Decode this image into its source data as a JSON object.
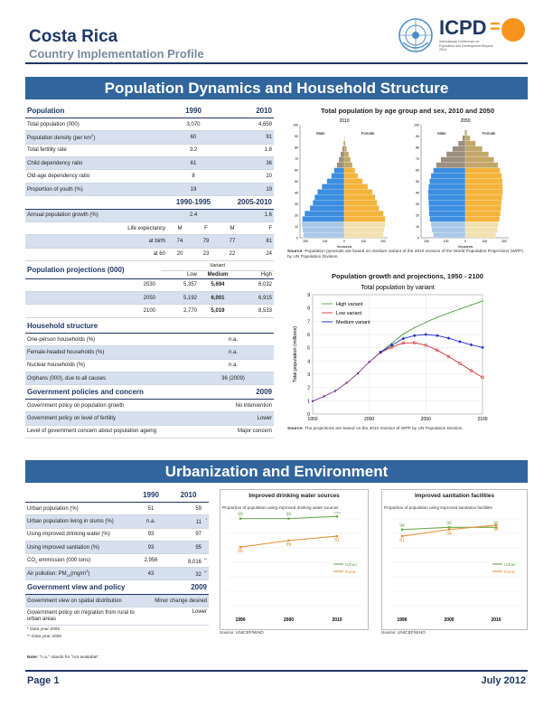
{
  "header": {
    "country": "Costa Rica",
    "subtitle": "Country Implementation Profile",
    "logo_text": "ICPD",
    "logo_sub": "International Conference on Population and Development Beyond 2014",
    "logo_equals": "=",
    "logo_colors": {
      "un_blue": "#4a90c8",
      "icpd_navy": "#1f3864",
      "orange": "#f7941d"
    }
  },
  "section1": {
    "title": "Population Dynamics and Household Structure",
    "population": {
      "header": {
        "label": "Population",
        "y1": "1990",
        "y2": "2010"
      },
      "rows": [
        {
          "label": "Total population (000)",
          "v1": "3,070",
          "v2": "4,659"
        },
        {
          "label": "Population density (per km",
          "sup": "2",
          "tail": ")",
          "v1": "60",
          "v2": "91"
        },
        {
          "label": "Total fertility rate",
          "v1": "3.2",
          "v2": "1.8"
        },
        {
          "label": "Child dependency ratio",
          "v1": "61",
          "v2": "36"
        },
        {
          "label": "Old-age dependency ratio",
          "v1": "8",
          "v2": "10"
        },
        {
          "label": "Proportion of youth (%)",
          "v1": "19",
          "v2": "19"
        }
      ],
      "period_header": {
        "p1": "1990-1995",
        "p2": "2005-2010"
      },
      "growth": {
        "label": "Annual population growth (%)",
        "v1": "2.4",
        "v2": "1.6"
      },
      "life": {
        "label": "Life expectancy",
        "mf": [
          "M",
          "F",
          "M",
          "F"
        ],
        "at_birth_label": "at birth",
        "at_birth": [
          "74",
          "79",
          "77",
          "81"
        ],
        "at60_label": "at 60",
        "at60": [
          "20",
          "23",
          "22",
          "24"
        ]
      }
    },
    "projections": {
      "label": "Population projections (000)",
      "variant_label": "Variant",
      "cols": [
        "Low",
        "Medium",
        "High"
      ],
      "rows": [
        {
          "year": "2030",
          "low": "5,357",
          "med": "5,694",
          "high": "6,032"
        },
        {
          "year": "2050",
          "low": "5,192",
          "med": "6,001",
          "high": "6,915"
        },
        {
          "year": "2100",
          "low": "2,770",
          "med": "5,019",
          "high": "8,533"
        }
      ]
    },
    "household": {
      "label": "Household structure",
      "rows": [
        {
          "label": "One-person households (%)",
          "value": "n.a."
        },
        {
          "label": "Female-headed households (%)",
          "value": "n.a."
        },
        {
          "label": "Nuclear households (%)",
          "value": "n.a."
        },
        {
          "label": "Orphans (000), due to all causes",
          "value": "36 (2009)"
        }
      ]
    },
    "policies": {
      "label": "Government policies and concern",
      "year": "2009",
      "rows": [
        {
          "label": "Government policy on population growth",
          "value": "No intervention"
        },
        {
          "label": "Government policy on level of fertility",
          "value": "Lower"
        },
        {
          "label": "Level of government concern about population ageing",
          "value": "Major concern"
        }
      ]
    }
  },
  "pyramid": {
    "title": "Total population by age group and sex, 2010 and 2050",
    "years": [
      "2010",
      "2050"
    ],
    "male_label": "Male",
    "female_label": "Female",
    "age_ticks": [
      "100",
      "90",
      "80",
      "70",
      "60",
      "50",
      "40",
      "30",
      "20",
      "10",
      "0"
    ],
    "x_ticks": [
      "200",
      "100",
      "0",
      "100",
      "200"
    ],
    "x_label": "thousands",
    "colors": {
      "male_young": "#a9c8e8",
      "male_mid": "#3b8ee0",
      "male_old": "#9b8f7e",
      "female_young": "#f2e0b0",
      "female_mid": "#f4b43c",
      "female_old": "#c2a868"
    },
    "pyramid_2010": {
      "male": [
        212,
        216,
        220,
        217,
        205,
        178,
        163,
        153,
        139,
        116,
        90,
        67,
        53,
        38,
        28,
        19,
        10,
        4,
        1,
        0,
        0
      ],
      "female": [
        202,
        206,
        211,
        212,
        203,
        180,
        170,
        160,
        146,
        122,
        94,
        70,
        56,
        42,
        32,
        23,
        13,
        6,
        2,
        0,
        0
      ]
    },
    "pyramid_2050": {
      "male": [
        166,
        174,
        178,
        184,
        188,
        189,
        190,
        192,
        193,
        190,
        185,
        178,
        166,
        151,
        127,
        98,
        67,
        37,
        15,
        4,
        0
      ],
      "female": [
        158,
        166,
        170,
        177,
        182,
        185,
        187,
        190,
        194,
        193,
        192,
        188,
        180,
        169,
        148,
        120,
        88,
        53,
        24,
        8,
        1
      ]
    },
    "source_label": "Source:",
    "source": " Population pyramids are based on medium variant of the 2010 revision of the World Population Projections (WPP) by UN Population Division."
  },
  "growth_chart": {
    "title": "Population growth and projections, 1950 - 2100",
    "chart_data": {
      "type": "line",
      "subtitle": "Total population by variant",
      "ylabel": "Total population (millions)",
      "xlim": [
        1950,
        2100
      ],
      "ylim": [
        0,
        9
      ],
      "x_ticks": [
        "1950",
        "2000",
        "2050",
        "2100"
      ],
      "y_ticks": [
        "0",
        "1",
        "2",
        "3",
        "4",
        "5",
        "6",
        "7",
        "8",
        "9"
      ],
      "history": {
        "x": [
          1950,
          1960,
          1970,
          1980,
          1990,
          2000,
          2010
        ],
        "y": [
          0.97,
          1.33,
          1.74,
          2.35,
          3.07,
          3.93,
          4.66
        ]
      },
      "series": [
        {
          "name": "High variant",
          "color": "#4aa040",
          "x": [
            2010,
            2020,
            2030,
            2040,
            2050,
            2060,
            2070,
            2080,
            2090,
            2100
          ],
          "y": [
            4.66,
            5.35,
            6.03,
            6.52,
            6.92,
            7.3,
            7.62,
            7.92,
            8.22,
            8.53
          ]
        },
        {
          "name": "Low variant",
          "color": "#d03030",
          "x": [
            2010,
            2020,
            2030,
            2040,
            2050,
            2060,
            2070,
            2080,
            2090,
            2100
          ],
          "y": [
            4.66,
            5.05,
            5.36,
            5.38,
            5.19,
            4.82,
            4.34,
            3.82,
            3.28,
            2.77
          ]
        },
        {
          "name": "Medium variant",
          "color": "#1f2fd0",
          "x": [
            2010,
            2020,
            2030,
            2040,
            2050,
            2060,
            2070,
            2080,
            2090,
            2100
          ],
          "y": [
            4.66,
            5.2,
            5.69,
            5.92,
            6.0,
            5.92,
            5.72,
            5.46,
            5.22,
            5.02
          ]
        }
      ]
    },
    "source_label": "Source:",
    "source": " The projections are based on the 2010 revision of WPP by UN Population Division."
  },
  "section2": {
    "title": "Urbanization and Environment",
    "urban": {
      "y1": "1990",
      "y2": "2010",
      "rows": [
        {
          "label": "Urban population (%)",
          "v1": "51",
          "v2": "59",
          "mark": ""
        },
        {
          "label": "Urban population living in slums (%)",
          "v1": "n.a.",
          "v2": "11",
          "mark": "*"
        },
        {
          "label": "Using improved drinking water (%)",
          "v1": "93",
          "v2": "97",
          "mark": ""
        },
        {
          "label": "Using improved sanitation (%)",
          "v1": "93",
          "v2": "95",
          "mark": ""
        },
        {
          "label": "CO",
          "sub": "2",
          "tail": " emmission (000 tons)",
          "v1": "2,956",
          "v2": "8,016",
          "mark": "**"
        },
        {
          "label": "Air pollution: PM",
          "sub": "10",
          "tail": "(mg/m",
          "sup": "3",
          "tail2": ")",
          "v1": "43",
          "v2": "32",
          "mark": "**"
        }
      ]
    },
    "gov_view": {
      "label": "Government view and policy",
      "year": "2009",
      "rows": [
        {
          "label": "Government view on spatial distribution",
          "value": "Minor change desired"
        },
        {
          "label": "Government policy on migration from rural to urban areas",
          "value": "Lower"
        }
      ]
    },
    "notes": [
      "* Data year 2005",
      "** Data year 2008"
    ],
    "note_label": "Note:",
    "note": " \"n.a.\" stands for \"not available\"."
  },
  "water_chart": {
    "title": "Improved drinking water sources",
    "subtitle": "Proportion of population using improved drinking water sources",
    "chart_data": {
      "type": "line",
      "x": [
        "1990",
        "2000",
        "2010"
      ],
      "series": [
        {
          "name": "Urban",
          "color": "#6aa84f",
          "values": [
            99,
            99,
            100
          ],
          "labels": [
            "99",
            "99",
            "100"
          ]
        },
        {
          "name": "Rural",
          "color": "#e69138",
          "values": [
            86,
            89,
            91
          ],
          "labels": [
            "86",
            "89",
            "91"
          ]
        }
      ]
    },
    "source": "Source: UNICEF/WHO"
  },
  "sanitation_chart": {
    "title": "Improved sanitation facilities",
    "subtitle": "Proportion of population using improved sanitation facilities",
    "chart_data": {
      "type": "line",
      "x": [
        "1990",
        "2000",
        "2010"
      ],
      "series": [
        {
          "name": "Urban",
          "color": "#6aa84f",
          "values": [
            94,
            95,
            95
          ],
          "labels": [
            "94",
            "95",
            "95"
          ]
        },
        {
          "name": "Rural",
          "color": "#e69138",
          "values": [
            91,
            94,
            96
          ],
          "labels": [
            "91",
            "94",
            "96"
          ]
        }
      ]
    },
    "source": "Source: UNICEF/WHO"
  },
  "footer": {
    "page": "Page 1",
    "date": "July 2012"
  }
}
